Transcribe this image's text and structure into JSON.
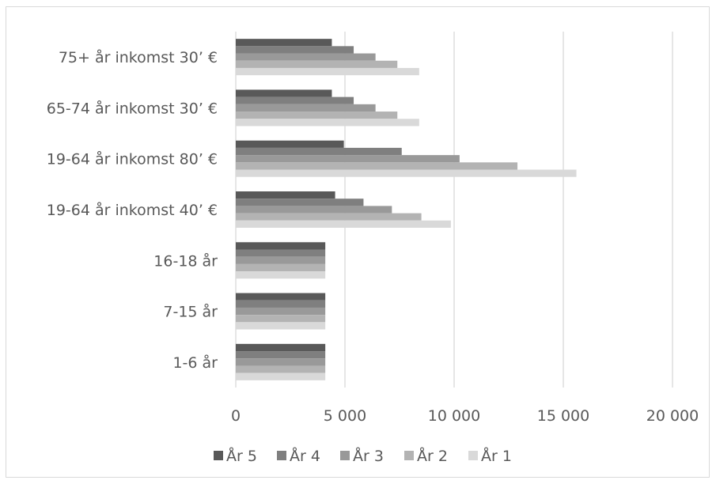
{
  "chart_data": {
    "type": "bar",
    "orientation": "horizontal",
    "categories": [
      "75+ år inkomst 30’ €",
      "65-74 år inkomst 30’ €",
      "19-64 år inkomst 80’ €",
      "19-64 år inkomst 40’ €",
      "16-18 år",
      "7-15 år",
      "1-6 år"
    ],
    "series": [
      {
        "name": "År 5",
        "color": "#595959",
        "values": [
          4400,
          4400,
          4950,
          4550,
          4100,
          4100,
          4100
        ]
      },
      {
        "name": "År 4",
        "color": "#7f7f7f",
        "values": [
          5400,
          5400,
          7600,
          5850,
          4100,
          4100,
          4100
        ]
      },
      {
        "name": "År 3",
        "color": "#999999",
        "values": [
          6400,
          6400,
          10250,
          7150,
          4100,
          4100,
          4100
        ]
      },
      {
        "name": "År 2",
        "color": "#b3b3b3",
        "values": [
          7400,
          7400,
          12900,
          8500,
          4100,
          4100,
          4100
        ]
      },
      {
        "name": "År 1",
        "color": "#d9d9d9",
        "values": [
          8400,
          8400,
          15600,
          9850,
          4100,
          4100,
          4100
        ]
      }
    ],
    "x_ticks": [
      "0",
      "5 000",
      "10 000",
      "15 000",
      "20 000"
    ],
    "xlim": [
      0,
      20000
    ],
    "grid": "vertical",
    "legend": "bottom",
    "title": "",
    "xlabel": "",
    "ylabel": ""
  }
}
